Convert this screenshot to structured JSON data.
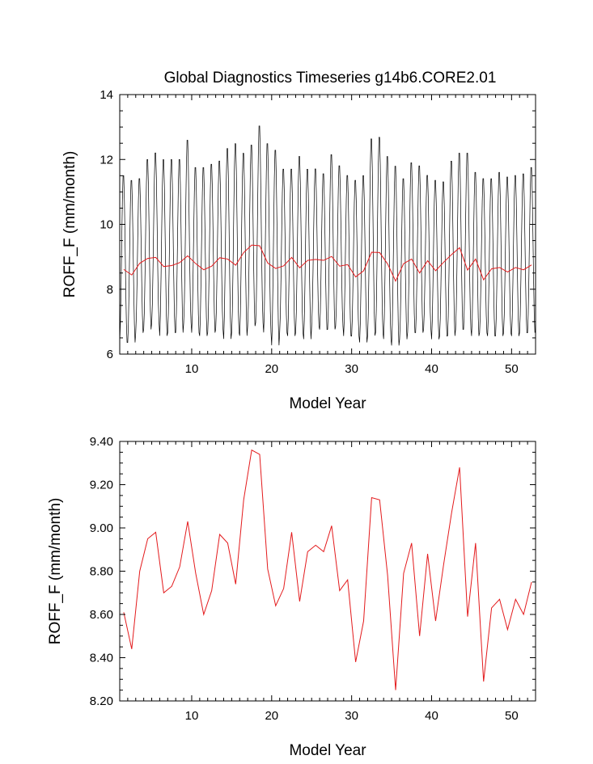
{
  "title": "Global Diagnostics Timeseries g14b6.CORE2.01",
  "colors": {
    "monthly": "#000000",
    "annual": "#e31a1c"
  },
  "chart_data": [
    {
      "type": "line",
      "title": "Global Diagnostics Timeseries g14b6.CORE2.01",
      "xlabel": "Model Year",
      "ylabel": "ROFF_F (mm/month)",
      "xlim": [
        1,
        53
      ],
      "ylim": [
        6,
        14
      ],
      "xticks": [
        10,
        20,
        30,
        40,
        50
      ],
      "xtick_labels": [
        "10",
        "20",
        "30",
        "40",
        "50"
      ],
      "yticks": [
        6,
        8,
        10,
        12,
        14
      ],
      "ytick_labels": [
        "6",
        "8",
        "10",
        "12",
        "14"
      ],
      "grid": false,
      "series": [
        {
          "color": "#000000",
          "style": "monthly",
          "x_start": 1,
          "x_step": 0.08333,
          "annual_peaks": [
            11.6,
            11.45,
            11.5,
            12.1,
            12.3,
            12.1,
            12.1,
            12.1,
            12.7,
            11.85,
            11.85,
            11.95,
            12.05,
            12.45,
            12.6,
            12.3,
            12.55,
            13.15,
            12.6,
            12.4,
            11.8,
            11.8,
            12.2,
            11.8,
            11.8,
            11.65,
            12.25,
            11.9,
            11.6,
            11.45,
            11.6,
            12.75,
            12.8,
            12.2,
            11.9,
            11.5,
            12.0,
            11.9,
            11.6,
            11.45,
            11.4,
            12.05,
            12.3,
            12.3,
            11.7,
            11.5,
            11.5,
            11.7,
            11.55,
            11.6,
            11.65,
            11.85
          ],
          "annual_troughs": [
            6.3,
            6.3,
            6.6,
            6.7,
            6.9,
            6.5,
            6.6,
            6.6,
            6.9,
            6.6,
            6.5,
            6.6,
            6.7,
            6.4,
            6.6,
            6.5,
            6.8,
            6.9,
            6.6,
            6.2,
            6.6,
            6.5,
            6.6,
            6.4,
            6.8,
            6.7,
            6.7,
            6.8,
            6.5,
            6.5,
            6.3,
            6.5,
            6.6,
            6.4,
            6.2,
            6.4,
            6.6,
            6.6,
            6.7,
            6.4,
            6.5,
            6.5,
            6.7,
            6.7,
            6.5,
            6.6,
            6.5,
            6.5,
            6.6,
            6.5,
            6.6,
            6.6
          ]
        },
        {
          "color": "#e31a1c",
          "style": "annual",
          "x": [
            1.5,
            2.5,
            3.5,
            4.5,
            5.5,
            6.5,
            7.5,
            8.5,
            9.5,
            10.5,
            11.5,
            12.5,
            13.5,
            14.5,
            15.5,
            16.5,
            17.5,
            18.5,
            19.5,
            20.5,
            21.5,
            22.5,
            23.5,
            24.5,
            25.5,
            26.5,
            27.5,
            28.5,
            29.5,
            30.5,
            31.5,
            32.5,
            33.5,
            34.5,
            35.5,
            36.5,
            37.5,
            38.5,
            39.5,
            40.5,
            41.5,
            42.5,
            43.5,
            44.5,
            45.5,
            46.5,
            47.5,
            48.5,
            49.5,
            50.5,
            51.5,
            52.5
          ],
          "values": [
            8.61,
            8.44,
            8.8,
            8.95,
            8.98,
            8.7,
            8.73,
            8.82,
            9.03,
            8.79,
            8.6,
            8.71,
            8.97,
            8.93,
            8.74,
            9.13,
            9.36,
            9.34,
            8.81,
            8.64,
            8.72,
            8.98,
            8.66,
            8.89,
            8.92,
            8.89,
            9.01,
            8.71,
            8.76,
            8.38,
            8.57,
            9.14,
            9.13,
            8.78,
            8.25,
            8.79,
            8.93,
            8.5,
            8.88,
            8.57,
            8.83,
            9.07,
            9.28,
            8.59,
            8.93,
            8.29,
            8.63,
            8.67,
            8.53,
            8.67,
            8.6,
            8.75
          ]
        }
      ]
    },
    {
      "type": "line",
      "title": "",
      "xlabel": "Model Year",
      "ylabel": "ROFF_F (mm/month)",
      "xlim": [
        1,
        53
      ],
      "ylim": [
        8.2,
        9.4
      ],
      "xticks": [
        10,
        20,
        30,
        40,
        50
      ],
      "xtick_labels": [
        "10",
        "20",
        "30",
        "40",
        "50"
      ],
      "yticks": [
        8.2,
        8.4,
        8.6,
        8.8,
        9.0,
        9.2,
        9.4
      ],
      "ytick_labels": [
        "8.20",
        "8.40",
        "8.60",
        "8.80",
        "9.00",
        "9.20",
        "9.40"
      ],
      "grid": false,
      "series": [
        {
          "color": "#e31a1c",
          "style": "annual",
          "x": [
            1.5,
            2.5,
            3.5,
            4.5,
            5.5,
            6.5,
            7.5,
            8.5,
            9.5,
            10.5,
            11.5,
            12.5,
            13.5,
            14.5,
            15.5,
            16.5,
            17.5,
            18.5,
            19.5,
            20.5,
            21.5,
            22.5,
            23.5,
            24.5,
            25.5,
            26.5,
            27.5,
            28.5,
            29.5,
            30.5,
            31.5,
            32.5,
            33.5,
            34.5,
            35.5,
            36.5,
            37.5,
            38.5,
            39.5,
            40.5,
            41.5,
            42.5,
            43.5,
            44.5,
            45.5,
            46.5,
            47.5,
            48.5,
            49.5,
            50.5,
            51.5,
            52.5
          ],
          "values": [
            8.61,
            8.44,
            8.8,
            8.95,
            8.98,
            8.7,
            8.73,
            8.82,
            9.03,
            8.79,
            8.6,
            8.71,
            8.97,
            8.93,
            8.74,
            9.13,
            9.36,
            9.34,
            8.81,
            8.64,
            8.72,
            8.98,
            8.66,
            8.89,
            8.92,
            8.89,
            9.01,
            8.71,
            8.76,
            8.38,
            8.57,
            9.14,
            9.13,
            8.78,
            8.25,
            8.79,
            8.93,
            8.5,
            8.88,
            8.57,
            8.83,
            9.07,
            9.28,
            8.59,
            8.93,
            8.29,
            8.63,
            8.67,
            8.53,
            8.67,
            8.6,
            8.75
          ]
        }
      ]
    }
  ]
}
